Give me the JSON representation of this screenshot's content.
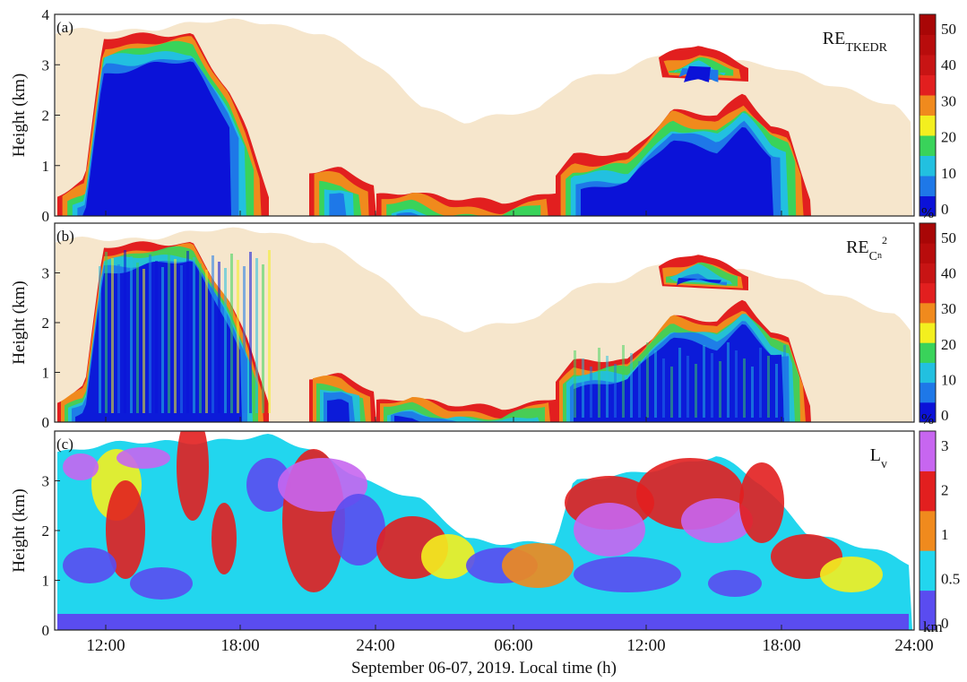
{
  "figure": {
    "xlabel": "September 06-07, 2019. Local time (h)",
    "x_ticks": [
      "12:00",
      "18:00",
      "24:00",
      "06:00",
      "12:00",
      "18:00",
      "24:00"
    ]
  },
  "chart_data": [
    {
      "type": "heatmap",
      "panel_label": "(a)",
      "title": "RE",
      "title_sub": "TKEDR",
      "title_sup": "",
      "ylabel": "Height (km)",
      "ylim": [
        0,
        4
      ],
      "y_ticks": [
        "0",
        "1",
        "2",
        "3",
        "4"
      ],
      "colorbar": {
        "ticks": [
          "0",
          "10",
          "20",
          "30",
          "40",
          "50"
        ],
        "unit": "%",
        "range": [
          0,
          50
        ],
        "colors": [
          "#0b12d8",
          "#1e78e8",
          "#22c0e0",
          "#39d35a",
          "#f3ef1f",
          "#f08a1d",
          "#e21f1f"
        ]
      }
    },
    {
      "type": "heatmap",
      "panel_label": "(b)",
      "title": "RE",
      "title_sub": "C",
      "title_sup": "2",
      "title_subsub": "n",
      "ylabel": "Height (km)",
      "ylim": [
        0,
        4
      ],
      "y_ticks": [
        "0",
        "1",
        "2",
        "3"
      ],
      "colorbar": {
        "ticks": [
          "0",
          "10",
          "20",
          "30",
          "40",
          "50"
        ],
        "unit": "%",
        "range": [
          0,
          50
        ]
      }
    },
    {
      "type": "heatmap",
      "panel_label": "(c)",
      "title": "L",
      "title_sub": "v",
      "ylabel": "Height (km)",
      "ylim": [
        0,
        4
      ],
      "y_ticks": [
        "0",
        "1",
        "2",
        "3"
      ],
      "colorbar": {
        "ticks": [
          "0",
          "0.5",
          "1",
          "2",
          "3"
        ],
        "unit": "km",
        "colors": [
          "#5a4cf0",
          "#22d6ee",
          "#f3ef1f",
          "#f08a1d",
          "#e21f1f",
          "#c766f0"
        ]
      }
    }
  ],
  "colors": {
    "no_data": "#f6e6cc",
    "deep_blue": "#0b12d8",
    "red": "#e21f1f"
  }
}
